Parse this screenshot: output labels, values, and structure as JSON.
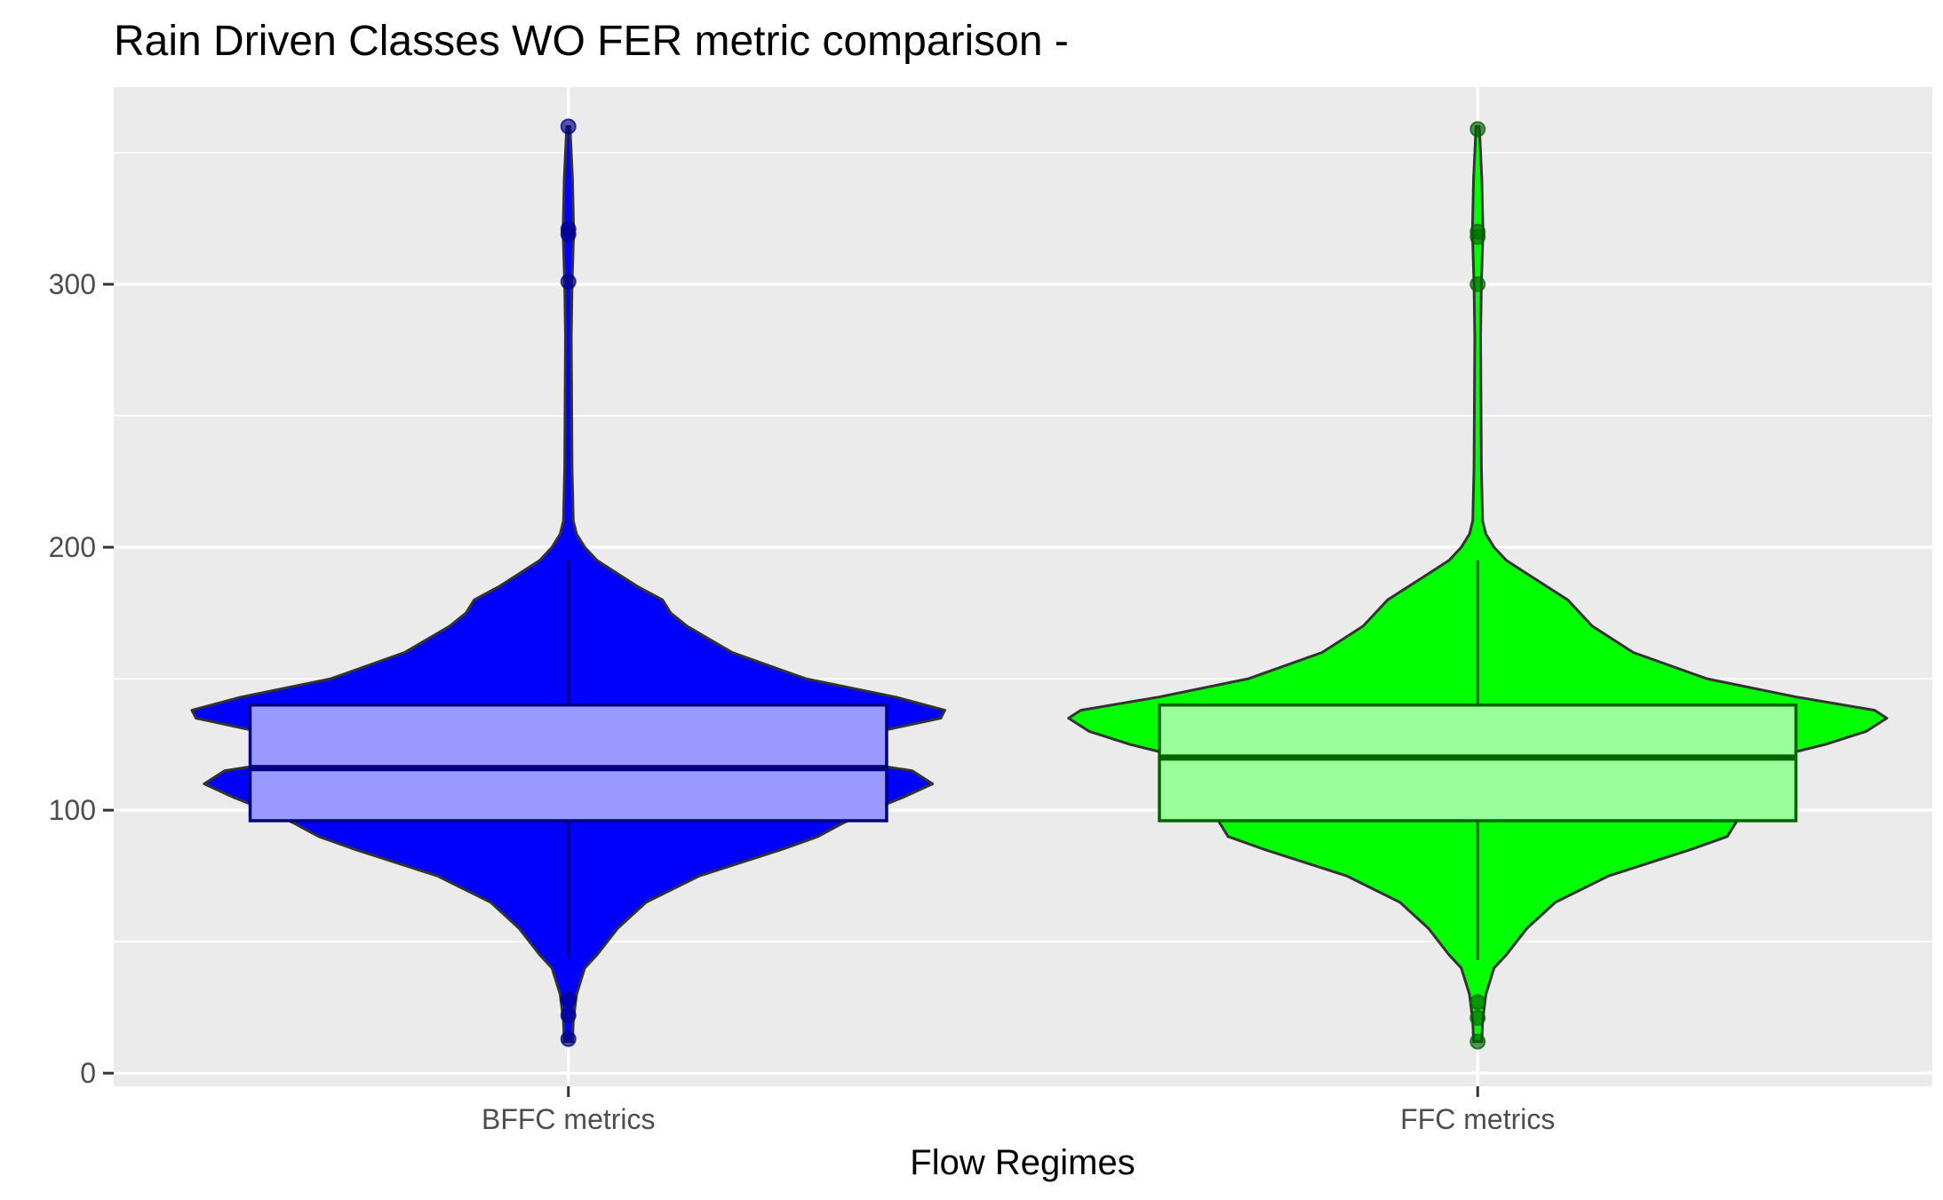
{
  "chart_data": {
    "type": "violin",
    "title": "Rain Driven Classes WO FER metric comparison  -",
    "xlabel": "Flow Regimes",
    "ylabel": "",
    "ylim": [
      -5,
      375
    ],
    "yticks": [
      0,
      100,
      200,
      300
    ],
    "grid": true,
    "legend": "none",
    "categories": [
      "BFFC metrics",
      "FFC metrics"
    ],
    "series": [
      {
        "category": "BFFC metrics",
        "violin_color": "#0000ff",
        "box_fill": "#9999ff",
        "box_line": "#000080",
        "point_color": "#00008b",
        "quartiles": {
          "q1": 96,
          "median": 116,
          "q3": 140
        },
        "whiskers": [
          44,
          195
        ],
        "outliers": [
          360,
          321,
          319,
          301,
          28,
          22,
          13
        ],
        "density_profile": [
          [
            12,
            0.01
          ],
          [
            20,
            0.012
          ],
          [
            30,
            0.02
          ],
          [
            40,
            0.04
          ],
          [
            45,
            0.07
          ],
          [
            55,
            0.12
          ],
          [
            65,
            0.19
          ],
          [
            75,
            0.32
          ],
          [
            85,
            0.52
          ],
          [
            90,
            0.61
          ],
          [
            95,
            0.67
          ],
          [
            100,
            0.74
          ],
          [
            105,
            0.82
          ],
          [
            110,
            0.89
          ],
          [
            115,
            0.84
          ],
          [
            120,
            0.63
          ],
          [
            125,
            0.64
          ],
          [
            130,
            0.76
          ],
          [
            135,
            0.91
          ],
          [
            138,
            0.92
          ],
          [
            143,
            0.8
          ],
          [
            150,
            0.58
          ],
          [
            160,
            0.4
          ],
          [
            170,
            0.29
          ],
          [
            175,
            0.25
          ],
          [
            180,
            0.23
          ],
          [
            185,
            0.17
          ],
          [
            190,
            0.12
          ],
          [
            195,
            0.07
          ],
          [
            200,
            0.04
          ],
          [
            205,
            0.02
          ],
          [
            210,
            0.012
          ],
          [
            230,
            0.009
          ],
          [
            280,
            0.007
          ],
          [
            300,
            0.009
          ],
          [
            320,
            0.013
          ],
          [
            340,
            0.01
          ],
          [
            360,
            0.004
          ]
        ]
      },
      {
        "category": "FFC metrics",
        "violin_color": "#00ff00",
        "box_fill": "#99ff99",
        "box_line": "#006400",
        "point_color": "#006400",
        "quartiles": {
          "q1": 96,
          "median": 120,
          "q3": 140
        },
        "whiskers": [
          43,
          195
        ],
        "outliers": [
          359,
          320,
          318,
          300,
          27,
          21,
          12
        ],
        "density_profile": [
          [
            12,
            0.01
          ],
          [
            20,
            0.012
          ],
          [
            30,
            0.02
          ],
          [
            40,
            0.04
          ],
          [
            45,
            0.07
          ],
          [
            55,
            0.12
          ],
          [
            65,
            0.19
          ],
          [
            75,
            0.32
          ],
          [
            85,
            0.52
          ],
          [
            90,
            0.61
          ],
          [
            95,
            0.63
          ],
          [
            100,
            0.65
          ],
          [
            105,
            0.69
          ],
          [
            110,
            0.72
          ],
          [
            115,
            0.65
          ],
          [
            120,
            0.72
          ],
          [
            125,
            0.85
          ],
          [
            130,
            0.95
          ],
          [
            135,
            1.0
          ],
          [
            138,
            0.97
          ],
          [
            143,
            0.78
          ],
          [
            150,
            0.56
          ],
          [
            160,
            0.38
          ],
          [
            170,
            0.28
          ],
          [
            175,
            0.25
          ],
          [
            180,
            0.22
          ],
          [
            185,
            0.17
          ],
          [
            190,
            0.12
          ],
          [
            195,
            0.07
          ],
          [
            200,
            0.04
          ],
          [
            205,
            0.02
          ],
          [
            210,
            0.012
          ],
          [
            230,
            0.009
          ],
          [
            280,
            0.007
          ],
          [
            300,
            0.009
          ],
          [
            320,
            0.013
          ],
          [
            340,
            0.01
          ],
          [
            360,
            0.004
          ]
        ]
      }
    ]
  }
}
